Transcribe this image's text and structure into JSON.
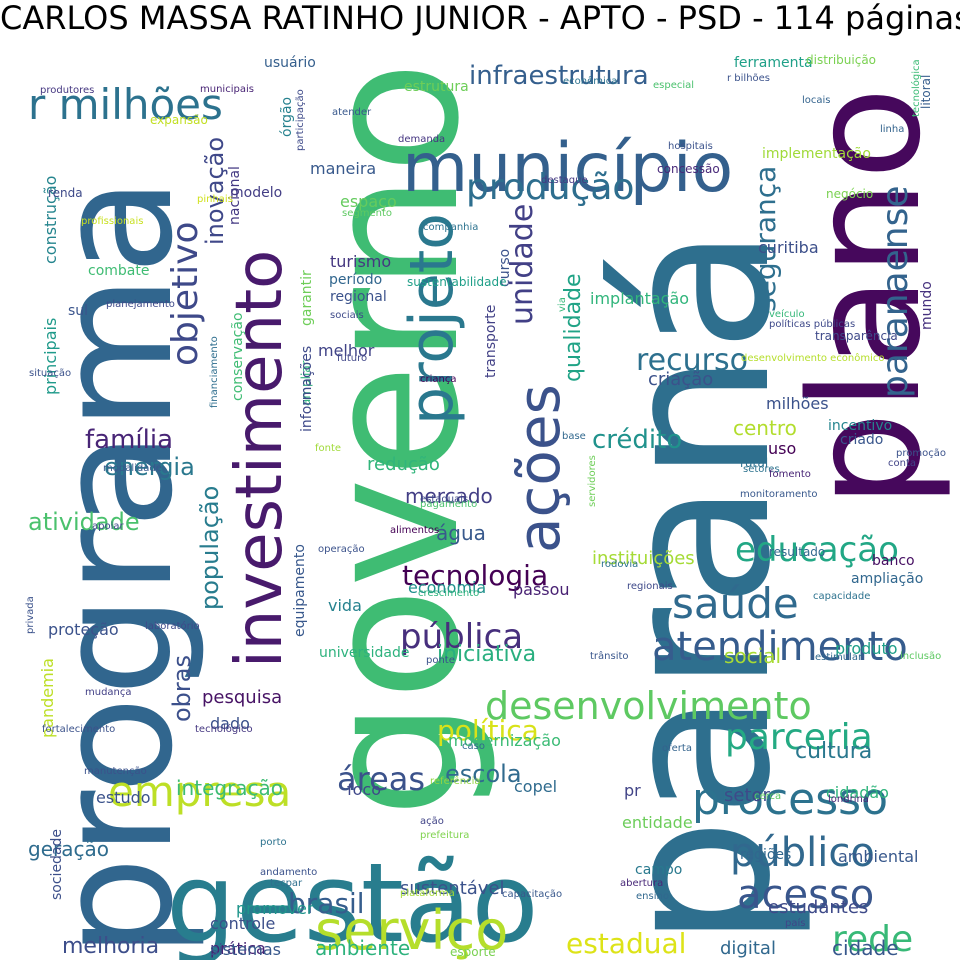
{
  "title": "CARLOS MASSA RATINHO JUNIOR - APTO - PSD - 114 páginas",
  "words": [
    {
      "text": "paraná",
      "color": "#2e6f8e"
    },
    {
      "text": "programa",
      "color": "#31668e"
    },
    {
      "text": "governo",
      "color": "#3fbc73"
    },
    {
      "text": "plano",
      "color": "#46085c"
    },
    {
      "text": "gestão",
      "color": "#287d8e"
    },
    {
      "text": "município",
      "color": "#34608d"
    },
    {
      "text": "investimento",
      "color": "#481a6c"
    },
    {
      "text": "projeto",
      "color": "#2a788e"
    },
    {
      "text": "serviço",
      "color": "#b5de2b"
    },
    {
      "text": "ações",
      "color": "#3b528b"
    },
    {
      "text": "empresa",
      "color": "#bddf26"
    },
    {
      "text": "desenvolvimento",
      "color": "#5ec962"
    },
    {
      "text": "processo",
      "color": "#2c728e"
    },
    {
      "text": "atendimento",
      "color": "#365c8d"
    },
    {
      "text": "saúde",
      "color": "#306a8e"
    },
    {
      "text": "produção",
      "color": "#2e6e8e"
    },
    {
      "text": "r milhões",
      "color": "#2c728e"
    },
    {
      "text": "paranaense",
      "color": "#33638d"
    },
    {
      "text": "público",
      "color": "#31688e"
    },
    {
      "text": "acesso",
      "color": "#39568c"
    },
    {
      "text": "parceria",
      "color": "#24aa83"
    },
    {
      "text": "rede",
      "color": "#38b977"
    },
    {
      "text": "educação",
      "color": "#22a785"
    },
    {
      "text": "objetivo",
      "color": "#3e4989"
    },
    {
      "text": "recurso",
      "color": "#2d708e"
    },
    {
      "text": "pública",
      "color": "#472f7d"
    },
    {
      "text": "infraestrutura",
      "color": "#355f8d"
    },
    {
      "text": "tecnologia",
      "color": "#440154"
    },
    {
      "text": "unidade",
      "color": "#424086"
    },
    {
      "text": "áreas",
      "color": "#3b528b"
    },
    {
      "text": "brasil",
      "color": "#365d8d"
    },
    {
      "text": "estadual",
      "color": "#dde318"
    },
    {
      "text": "política",
      "color": "#d8e219"
    },
    {
      "text": "segurança",
      "color": "#2e6f8e"
    },
    {
      "text": "inovação",
      "color": "#3f4889"
    },
    {
      "text": "qualidade",
      "color": "#20a386"
    },
    {
      "text": "família",
      "color": "#482576"
    },
    {
      "text": "energia",
      "color": "#2a788e"
    },
    {
      "text": "atividade",
      "color": "#4ac16d"
    },
    {
      "text": "crédito",
      "color": "#20928c"
    },
    {
      "text": "população",
      "color": "#287c8e"
    },
    {
      "text": "obras",
      "color": "#3c508b"
    },
    {
      "text": "escola",
      "color": "#306a8e"
    },
    {
      "text": "cultura",
      "color": "#2a788e"
    },
    {
      "text": "iniciativa",
      "color": "#29af7f"
    },
    {
      "text": "integração",
      "color": "#3dbc74"
    },
    {
      "text": "geração",
      "color": "#2f6c8e"
    },
    {
      "text": "melhoria",
      "color": "#3d4e8a"
    },
    {
      "text": "ambiente",
      "color": "#2db27d"
    },
    {
      "text": "cidade",
      "color": "#38588c"
    },
    {
      "text": "digital",
      "color": "#31688e"
    },
    {
      "text": "estudantes",
      "color": "#3e4a89"
    },
    {
      "text": "sustentável",
      "color": "#3b528b"
    },
    {
      "text": "controle",
      "color": "#3c4f8a"
    },
    {
      "text": "prática",
      "color": "#482475"
    },
    {
      "text": "sistemas",
      "color": "#38588c"
    },
    {
      "text": "mercado",
      "color": "#433e85"
    },
    {
      "text": "água",
      "color": "#38598c"
    },
    {
      "text": "economia",
      "color": "#21918c"
    },
    {
      "text": "social",
      "color": "#a8db34"
    },
    {
      "text": "produto",
      "color": "#1f9f88"
    },
    {
      "text": "pesquisa",
      "color": "#471365"
    },
    {
      "text": "dado",
      "color": "#3b518b"
    },
    {
      "text": "modernização",
      "color": "#3bbb75"
    },
    {
      "text": "foco",
      "color": "#3f4889"
    },
    {
      "text": "copel",
      "color": "#2f6b8e"
    },
    {
      "text": "setor",
      "color": "#3e4a89"
    },
    {
      "text": "cidadão",
      "color": "#2fb47c"
    },
    {
      "text": "entidade",
      "color": "#6ccd5a"
    },
    {
      "text": "regiões",
      "color": "#31678e"
    },
    {
      "text": "ambiental",
      "color": "#38588c"
    },
    {
      "text": "campo",
      "color": "#29798e"
    },
    {
      "text": "promover",
      "color": "#1f958b"
    },
    {
      "text": "estudo",
      "color": "#3b528b"
    },
    {
      "text": "pr",
      "color": "#414487"
    },
    {
      "text": "sociedade",
      "color": "#3c4f8a"
    },
    {
      "text": "pandemia",
      "color": "#bddf26"
    },
    {
      "text": "proteção",
      "color": "#3b528b"
    },
    {
      "text": "universidade",
      "color": "#2db27d"
    },
    {
      "text": "vida",
      "color": "#26828e"
    },
    {
      "text": "passou",
      "color": "#482173"
    },
    {
      "text": "instituições",
      "color": "#a5db36"
    },
    {
      "text": "banco",
      "color": "#471063"
    },
    {
      "text": "ampliação",
      "color": "#31678e"
    },
    {
      "text": "resultado",
      "color": "#31688e"
    },
    {
      "text": "redução",
      "color": "#31b57b"
    },
    {
      "text": "centro",
      "color": "#b2dd2d"
    },
    {
      "text": "uso",
      "color": "#440154"
    },
    {
      "text": "incentivo",
      "color": "#25858e"
    },
    {
      "text": "criado",
      "color": "#39568c"
    },
    {
      "text": "rural",
      "color": "#2d708e"
    },
    {
      "text": "milhões",
      "color": "#3b528b"
    },
    {
      "text": "criação",
      "color": "#3b528b"
    },
    {
      "text": "implantação",
      "color": "#31b57b"
    },
    {
      "text": "curitiba",
      "color": "#3c4f8a"
    },
    {
      "text": "turismo",
      "color": "#453781"
    },
    {
      "text": "período",
      "color": "#31668e"
    },
    {
      "text": "regional",
      "color": "#3b528b"
    },
    {
      "text": "melhor",
      "color": "#414487"
    },
    {
      "text": "maneira",
      "color": "#38598c"
    },
    {
      "text": "espaço",
      "color": "#65cb5e"
    },
    {
      "text": "modelo",
      "color": "#433e85"
    },
    {
      "text": "combate",
      "color": "#3fbc73"
    },
    {
      "text": "sul",
      "color": "#3a548c"
    },
    {
      "text": "construção",
      "color": "#25858e"
    },
    {
      "text": "principais",
      "color": "#1f9a8a"
    },
    {
      "text": "conservação",
      "color": "#3fbc73"
    },
    {
      "text": "ampliar",
      "color": "#2db27d"
    },
    {
      "text": "órgão",
      "color": "#26818e"
    },
    {
      "text": "nacional",
      "color": "#443983"
    },
    {
      "text": "garantir",
      "color": "#6ece58"
    },
    {
      "text": "financiamento",
      "color": "#2e6e8e"
    },
    {
      "text": "informações",
      "color": "#3e4989"
    },
    {
      "text": "equipamento",
      "color": "#38588c"
    },
    {
      "text": "transporte",
      "color": "#424186"
    },
    {
      "text": "curso",
      "color": "#3b528b"
    },
    {
      "text": "sustentabilidade",
      "color": "#1f9f88"
    },
    {
      "text": "usuário",
      "color": "#355f8d"
    },
    {
      "text": "ferramenta",
      "color": "#1fa088"
    },
    {
      "text": "distribuição",
      "color": "#7ad151"
    },
    {
      "text": "estrutura",
      "color": "#6ece58"
    },
    {
      "text": "implementação",
      "color": "#a0da39"
    },
    {
      "text": "mundo",
      "color": "#46327e"
    },
    {
      "text": "litoral",
      "color": "#365d8d"
    },
    {
      "text": "linha",
      "color": "#33638d"
    },
    {
      "text": "negócio",
      "color": "#7ad151"
    },
    {
      "text": "transparência",
      "color": "#3e4989"
    },
    {
      "text": "renda",
      "color": "#3e4a89"
    },
    {
      "text": "expansão",
      "color": "#c2df23"
    },
    {
      "text": "concessão",
      "color": "#482979"
    },
    {
      "text": "hospitais",
      "color": "#3b528b"
    },
    {
      "text": "demanda",
      "color": "#453581"
    },
    {
      "text": "atender",
      "color": "#38588c"
    },
    {
      "text": "destaque",
      "color": "#453781"
    },
    {
      "text": "segmento",
      "color": "#5ec962"
    },
    {
      "text": "companhia",
      "color": "#2c728e"
    },
    {
      "text": "sociais",
      "color": "#3e4a89"
    },
    {
      "text": "futuro",
      "color": "#404688"
    },
    {
      "text": "criança",
      "color": "#440154"
    },
    {
      "text": "fonte",
      "color": "#a0da39"
    },
    {
      "text": "estaduais",
      "color": "#3e4989"
    },
    {
      "text": "pagamento",
      "color": "#4ac16d"
    },
    {
      "text": "alimentos",
      "color": "#440154"
    },
    {
      "text": "operação",
      "color": "#3b528b"
    },
    {
      "text": "crescimento",
      "color": "#2db27d"
    },
    {
      "text": "rodovia",
      "color": "#2c728e"
    },
    {
      "text": "regionais",
      "color": "#3e4989"
    },
    {
      "text": "capacidade",
      "color": "#2c728e"
    },
    {
      "text": "trânsito",
      "color": "#39568c"
    },
    {
      "text": "estimular",
      "color": "#31688e"
    },
    {
      "text": "ponte",
      "color": "#3b528b"
    },
    {
      "text": "inclusão",
      "color": "#5ec962"
    },
    {
      "text": "caso",
      "color": "#31688e"
    },
    {
      "text": "oferta",
      "color": "#33638d"
    },
    {
      "text": "cerca",
      "color": "#5ec962"
    },
    {
      "text": "londrina",
      "color": "#482475"
    },
    {
      "text": "referência",
      "color": "#93d741"
    },
    {
      "text": "ação",
      "color": "#414487"
    },
    {
      "text": "prefeitura",
      "color": "#7fd34e"
    },
    {
      "text": "porto",
      "color": "#2c728e"
    },
    {
      "text": "andamento",
      "color": "#3b528b"
    },
    {
      "text": "tecpar",
      "color": "#2e6f8e"
    },
    {
      "text": "plataforma",
      "color": "#a5db36"
    },
    {
      "text": "capacitação",
      "color": "#38588c"
    },
    {
      "text": "abertura",
      "color": "#482878"
    },
    {
      "text": "ensino",
      "color": "#31688e"
    },
    {
      "text": "país",
      "color": "#404688"
    },
    {
      "text": "esporte",
      "color": "#7ad151"
    },
    {
      "text": "laboratório",
      "color": "#3e4989"
    },
    {
      "text": "privada",
      "color": "#3b528b"
    },
    {
      "text": "apoiar",
      "color": "#3e4989"
    },
    {
      "text": "mudança",
      "color": "#424086"
    },
    {
      "text": "fortalecimento",
      "color": "#3b528b"
    },
    {
      "text": "tecnológico",
      "color": "#453781"
    },
    {
      "text": "manutenção",
      "color": "#3b528b"
    },
    {
      "text": "modalidade",
      "color": "#38588c"
    },
    {
      "text": "situação",
      "color": "#3b528b"
    },
    {
      "text": "planejamento",
      "color": "#3e4989"
    },
    {
      "text": "profissionais",
      "color": "#c8e020"
    },
    {
      "text": "pinhais",
      "color": "#d0e11c"
    },
    {
      "text": "participação",
      "color": "#3e4a89"
    },
    {
      "text": "produtores",
      "color": "#453781"
    },
    {
      "text": "municipais",
      "color": "#482475"
    },
    {
      "text": "econômica",
      "color": "#2c728e"
    },
    {
      "text": "especial",
      "color": "#4ac16d"
    },
    {
      "text": "r bilhões",
      "color": "#3b528b"
    },
    {
      "text": "locais",
      "color": "#33638d"
    },
    {
      "text": "tecnológica",
      "color": "#3bbb75"
    },
    {
      "text": "servidores",
      "color": "#6ece58"
    },
    {
      "text": "via",
      "color": "#35b779"
    },
    {
      "text": "veículo",
      "color": "#35b779"
    },
    {
      "text": "políticas públicas",
      "color": "#3e4989"
    },
    {
      "text": "desenvolvimento econômico",
      "color": "#b5de2b"
    },
    {
      "text": "base",
      "color": "#31688e"
    },
    {
      "text": "promoção",
      "color": "#3b528b"
    },
    {
      "text": "conta",
      "color": "#414487"
    },
    {
      "text": "setores",
      "color": "#2c728e"
    },
    {
      "text": "fomento",
      "color": "#482475"
    },
    {
      "text": "monitoramento",
      "color": "#38588c"
    }
  ]
}
